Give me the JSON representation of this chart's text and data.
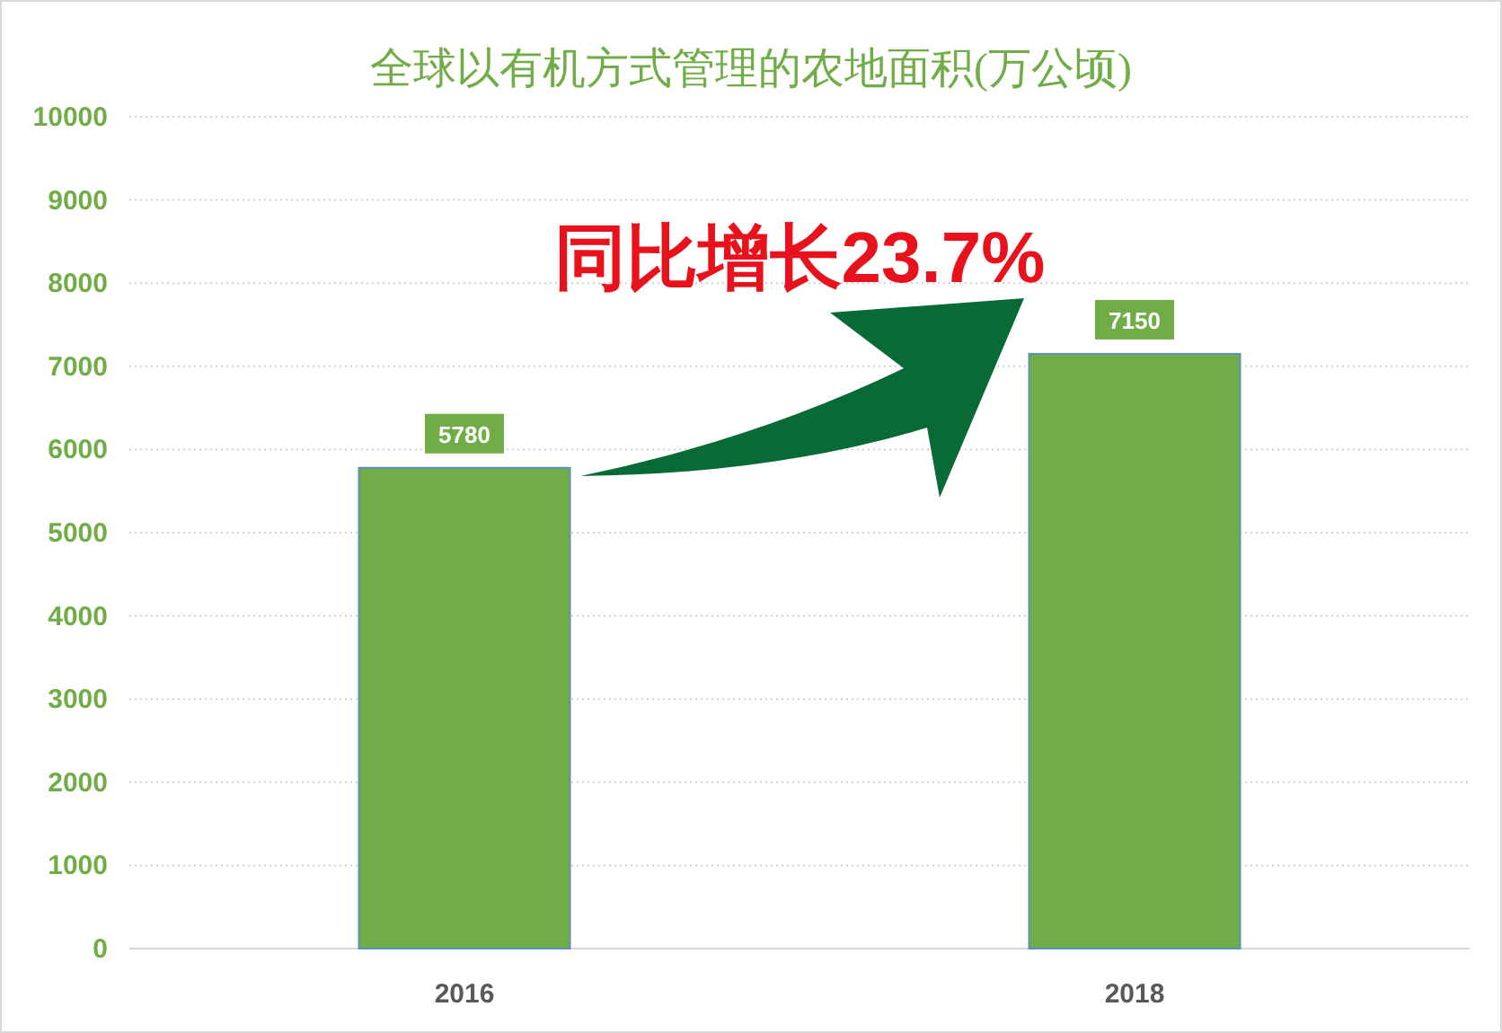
{
  "chart_data": {
    "type": "bar",
    "title": "全球以有机方式管理的农地面积(万公顷)",
    "categories": [
      "2016",
      "2018"
    ],
    "values": [
      5780,
      7150
    ],
    "color": "#70ad47",
    "ylim": [
      0,
      10000
    ],
    "yticks": [
      0,
      1000,
      2000,
      3000,
      4000,
      5000,
      6000,
      7000,
      8000,
      9000,
      10000
    ],
    "grid": "y",
    "data_labels": true,
    "annotations": [
      "同比增长23.7%"
    ]
  }
}
